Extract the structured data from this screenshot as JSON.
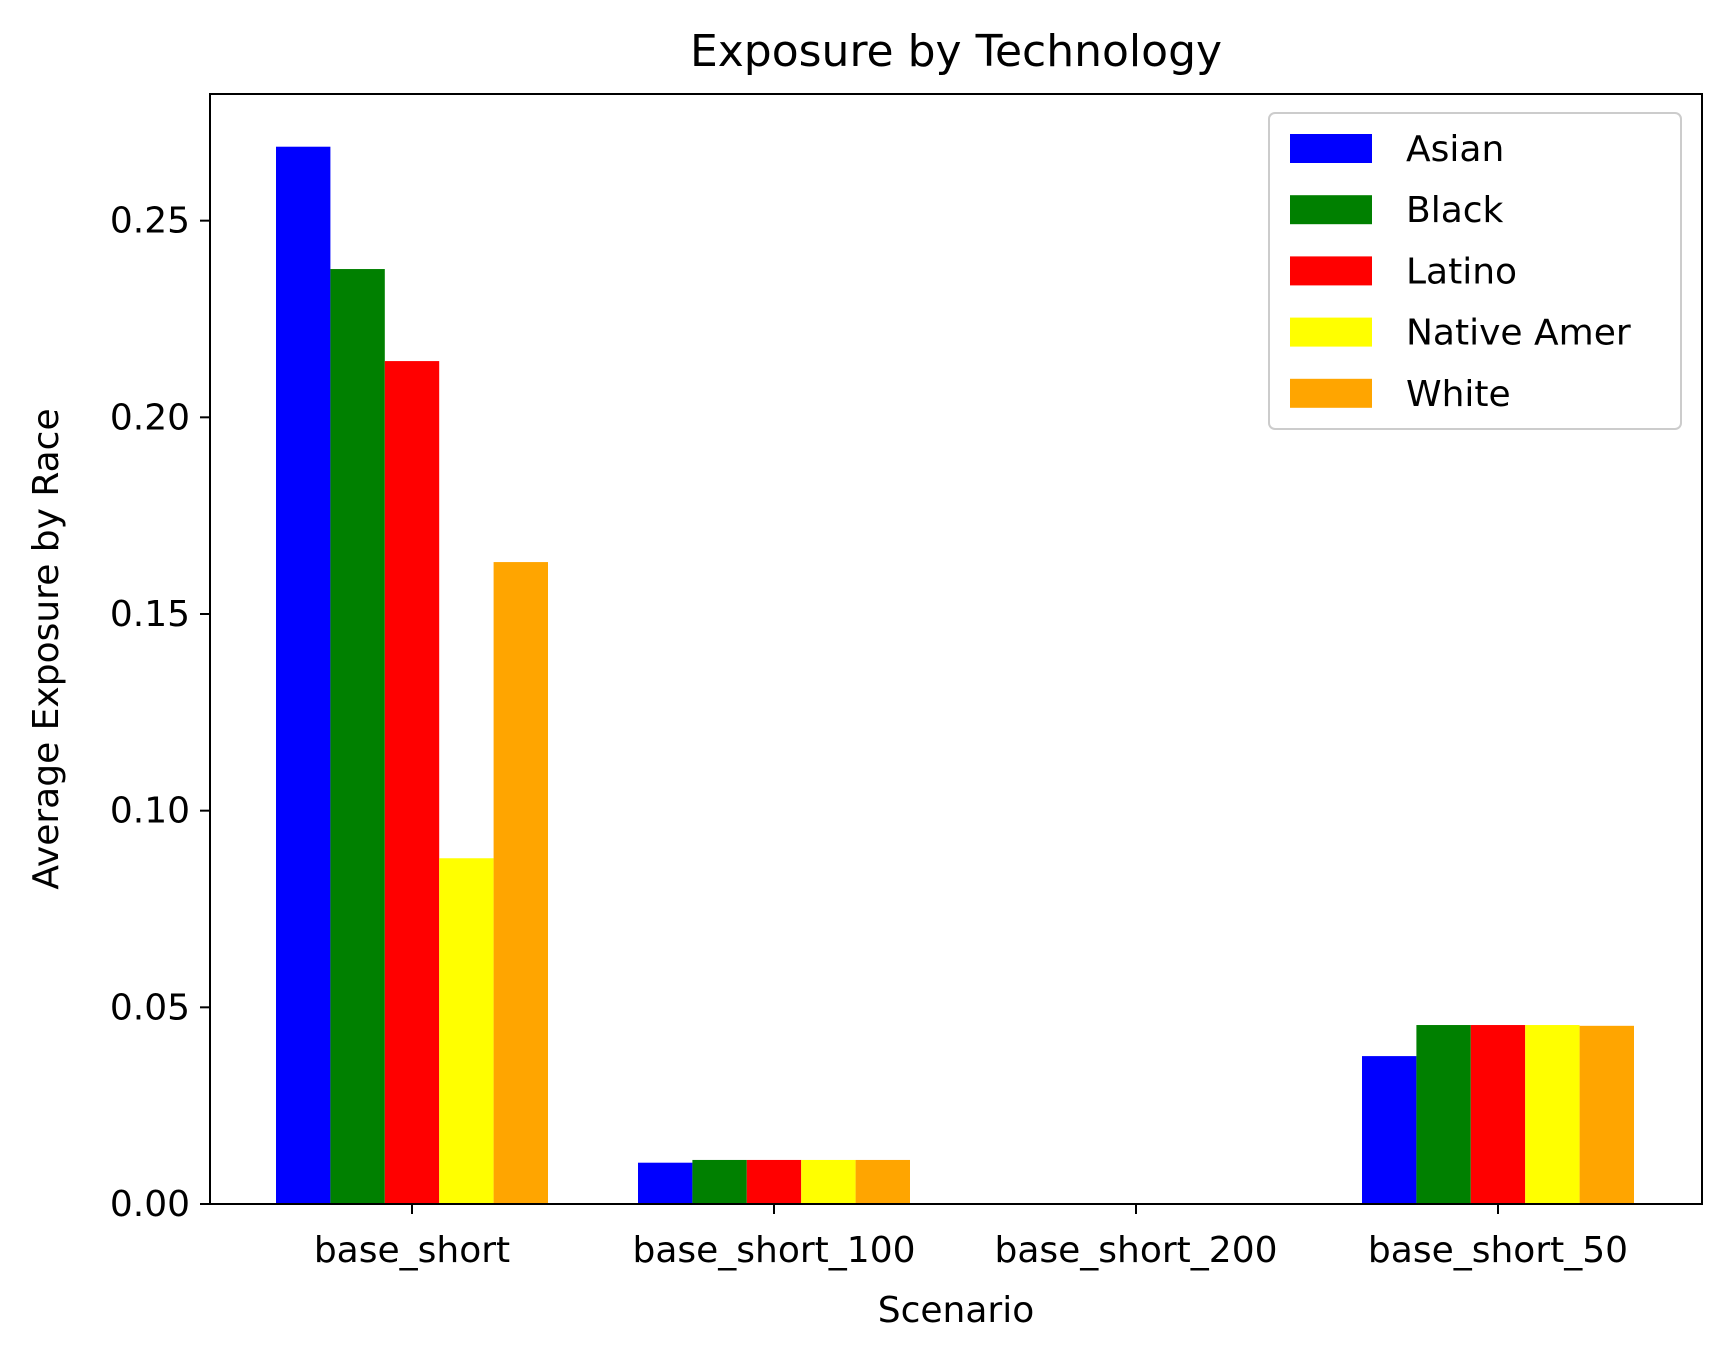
{
  "chart_data": {
    "type": "bar",
    "title": "Exposure by Technology",
    "xlabel": "Scenario",
    "ylabel": "Average Exposure by Race",
    "categories": [
      "base_short",
      "base_short_100",
      "base_short_200",
      "base_short_50"
    ],
    "series": [
      {
        "name": "Asian",
        "color": "#0000ff",
        "values": [
          0.2688,
          0.0105,
          0.0,
          0.0376
        ]
      },
      {
        "name": "Black",
        "color": "#008000",
        "values": [
          0.2377,
          0.0112,
          0.0,
          0.0455
        ]
      },
      {
        "name": "Latino",
        "color": "#ff0000",
        "values": [
          0.2143,
          0.0112,
          0.0,
          0.0455
        ]
      },
      {
        "name": "Native Amer",
        "color": "#ffff00",
        "values": [
          0.0879,
          0.0112,
          0.0,
          0.0455
        ]
      },
      {
        "name": "White",
        "color": "#ffa500",
        "values": [
          0.1632,
          0.0112,
          0.0,
          0.0453
        ]
      }
    ],
    "ylim": [
      0,
      0.2822
    ],
    "yticks": [
      0.0,
      0.05,
      0.1,
      0.15,
      0.2,
      0.25
    ],
    "ytick_labels": [
      "0.00",
      "0.05",
      "0.10",
      "0.15",
      "0.20",
      "0.25"
    ],
    "grid": false,
    "legend_position": "top-right"
  }
}
